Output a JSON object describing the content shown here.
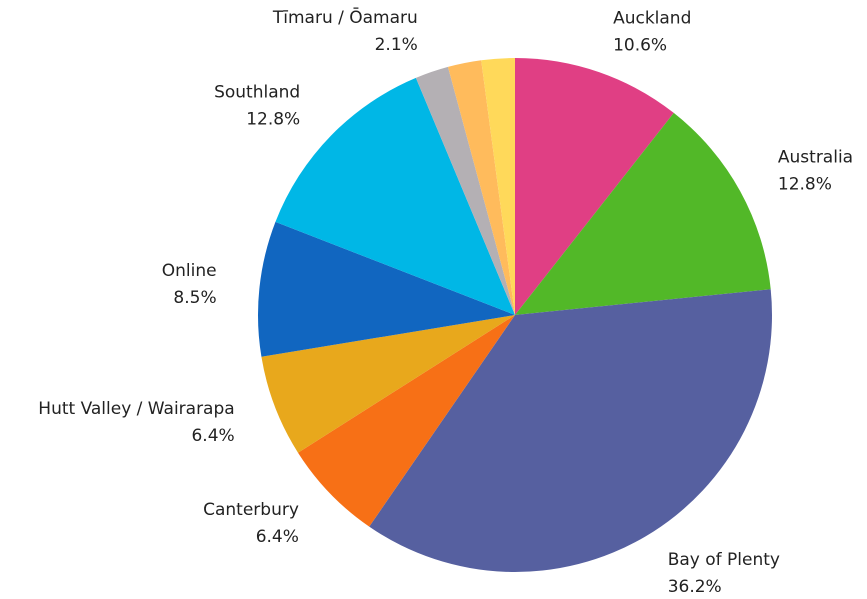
{
  "chart_data": {
    "type": "pie",
    "categories": [
      "Auckland",
      "Australia",
      "Bay of Plenty",
      "Canterbury",
      "Hutt Valley / Wairarapa",
      "Online",
      "Southland",
      "Tīmaru / Ōamaru",
      null,
      null
    ],
    "values": [
      10.6,
      12.8,
      36.2,
      6.4,
      6.4,
      8.5,
      12.8,
      2.1,
      2.1,
      2.1
    ],
    "value_labels": [
      "10.6%",
      "12.8%",
      "36.2%",
      "6.4%",
      "6.4%",
      "8.5%",
      "12.8%",
      "2.1%",
      null,
      null
    ],
    "colors": [
      "#e03f84",
      "#52b828",
      "#5660a0",
      "#f77016",
      "#e8a81c",
      "#1166c0",
      "#00b7e6",
      "#b4b0b4",
      "#ffbb5c",
      "#ffd95a"
    ]
  }
}
